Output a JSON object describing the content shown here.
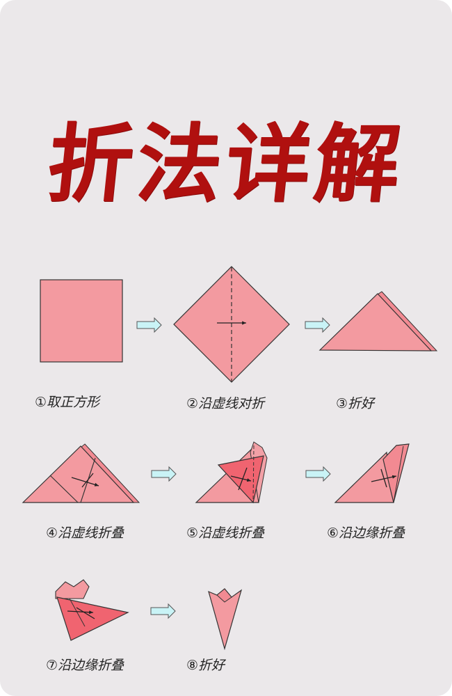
{
  "title": "折法详解",
  "colors": {
    "title": "#b0100f",
    "paper": "#f39aa0",
    "paper_dark": "#f06470",
    "arrow": "#c9f3f6",
    "background": "#ebe8ea"
  },
  "steps": [
    {
      "label": "①取正方形"
    },
    {
      "label": "②沿虚线对折"
    },
    {
      "label": "③折好"
    },
    {
      "label": "④沿虚线折叠"
    },
    {
      "label": "⑤沿虚线折叠"
    },
    {
      "label": "⑥沿边缘折叠"
    },
    {
      "label": "⑦沿边缘折叠"
    },
    {
      "label": "⑧折好"
    }
  ]
}
